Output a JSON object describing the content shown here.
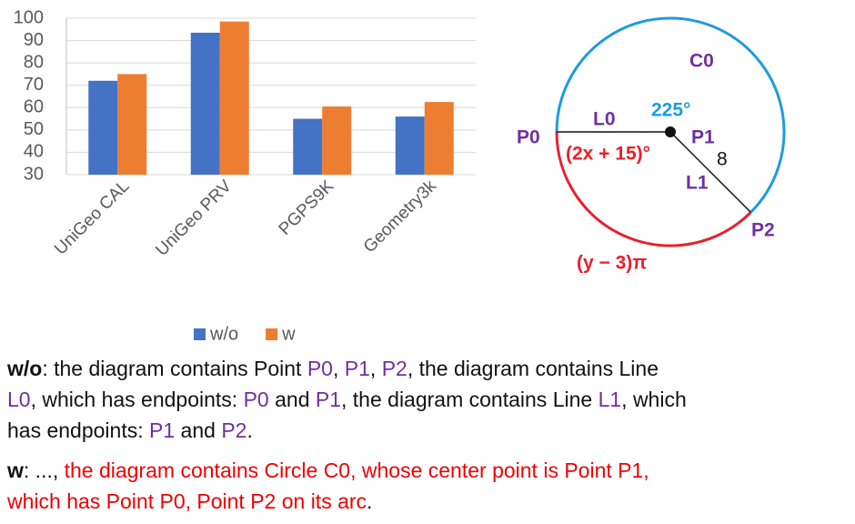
{
  "chart_data": {
    "type": "bar",
    "categories": [
      "UniGeo CAL",
      "UniGeo PRV",
      "PGPS9K",
      "Geometry3k"
    ],
    "series": [
      {
        "name": "w/o",
        "color": "#4472c4",
        "values": [
          72,
          93.5,
          55,
          56
        ]
      },
      {
        "name": "w",
        "color": "#ed7d31",
        "values": [
          75,
          98.5,
          60.5,
          62.5
        ]
      }
    ],
    "ylim": [
      30,
      100
    ],
    "yticks": [
      30,
      40,
      50,
      60,
      70,
      80,
      90,
      100
    ],
    "grid": true,
    "legend": "bottom"
  },
  "diagram": {
    "labels": [
      "C0",
      "L0",
      "225°",
      "P0",
      "P1",
      "(2x + 15)°",
      "8",
      "L1",
      "P2",
      "(y − 3)π"
    ]
  },
  "text": {
    "lines": [
      [
        {
          "text": "w/o",
          "bold": true
        },
        {
          "text": ": the diagram contains Point "
        },
        {
          "text": "P0",
          "color": "#7030a0"
        },
        {
          "text": ", "
        },
        {
          "text": "P1",
          "color": "#7030a0"
        },
        {
          "text": ", "
        },
        {
          "text": "P2",
          "color": "#7030a0"
        },
        {
          "text": ", the diagram contains Line"
        }
      ],
      [
        {
          "text": "L0",
          "color": "#7030a0"
        },
        {
          "text": ", which has endpoints: "
        },
        {
          "text": "P0",
          "color": "#7030a0"
        },
        {
          "text": " and "
        },
        {
          "text": "P1",
          "color": "#7030a0"
        },
        {
          "text": ", the diagram contains Line "
        },
        {
          "text": "L1",
          "color": "#7030a0"
        },
        {
          "text": ", which"
        }
      ],
      [
        {
          "text": "has endpoints: "
        },
        {
          "text": "P1",
          "color": "#7030a0"
        },
        {
          "text": " and "
        },
        {
          "text": "P2",
          "color": "#7030a0"
        },
        {
          "text": "."
        }
      ],
      [
        {
          "text": "w",
          "bold": true
        },
        {
          "text": ": ..., "
        },
        {
          "text": "the diagram contains Circle C0, whose center point is Point P1,",
          "color": "#ee0000"
        }
      ],
      [
        {
          "text": "which has Point P0, Point P2 on its arc",
          "color": "#ee0000"
        },
        {
          "text": "."
        }
      ]
    ]
  }
}
